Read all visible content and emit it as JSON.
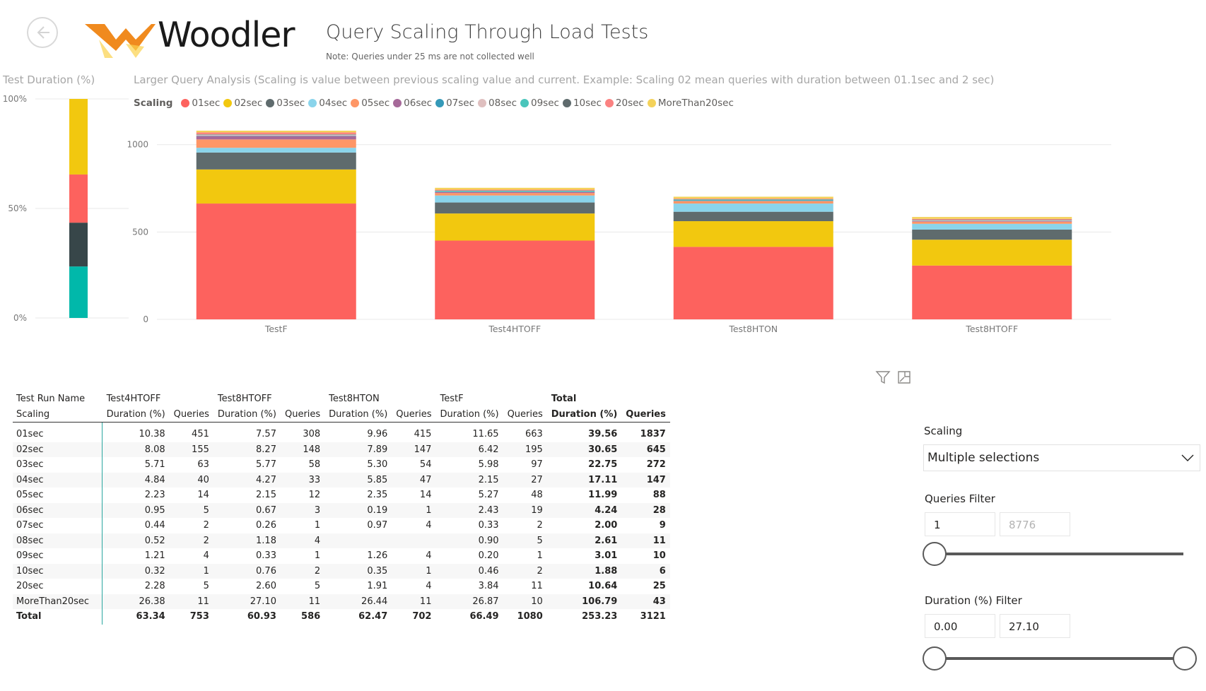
{
  "header": {
    "logo_text": "Woodler",
    "title": "Query Scaling Through Load Tests",
    "note": "Note: Queries under 25 ms are not collected well"
  },
  "left_chart_title": "Test Duration (%)",
  "main_chart_title": "Larger Query Analysis (Scaling is value between previous scaling value and current. Example: Scaling 02 mean queries with duration between 01.1sec and 2 sec)",
  "legend": {
    "title": "Scaling",
    "items": [
      {
        "label": "01sec",
        "color": "#fd625e"
      },
      {
        "label": "02sec",
        "color": "#f2c80f"
      },
      {
        "label": "03sec",
        "color": "#5f6b6d"
      },
      {
        "label": "04sec",
        "color": "#8ad4eb"
      },
      {
        "label": "05sec",
        "color": "#fe9666"
      },
      {
        "label": "06sec",
        "color": "#a66999"
      },
      {
        "label": "07sec",
        "color": "#3599b8"
      },
      {
        "label": "08sec",
        "color": "#dfbfbf"
      },
      {
        "label": "09sec",
        "color": "#4ac5bb"
      },
      {
        "label": "10sec",
        "color": "#5f6b6d"
      },
      {
        "label": "20sec",
        "color": "#fb8281"
      },
      {
        "label": "MoreThan20sec",
        "color": "#f4d25a"
      }
    ]
  },
  "chart_data": [
    {
      "type": "bar",
      "stacked": true,
      "title": "Test Duration (%)",
      "ylim": [
        0,
        100
      ],
      "y_ticks": [
        "0%",
        "50%",
        "100%"
      ],
      "grid": true,
      "series": [
        {
          "values": [
            23.5
          ],
          "color": "#01b8aa"
        },
        {
          "values": [
            20.0
          ],
          "color": "#374649"
        },
        {
          "values": [
            22.0
          ],
          "color": "#fd625e"
        },
        {
          "values": [
            34.5
          ],
          "color": "#f2c80f"
        }
      ]
    },
    {
      "type": "bar",
      "stacked": true,
      "title": "Larger Query Analysis (Scaling is value between previous scaling value and current. Example: Scaling 02 mean queries with duration between 01.1sec and 2 sec)",
      "categories": [
        "TestF",
        "Test4HTOFF",
        "Test8HTON",
        "Test8HTOFF"
      ],
      "ylim": [
        0,
        1100
      ],
      "y_ticks": [
        0,
        500,
        1000
      ],
      "grid": true,
      "legend_position": "top-left",
      "series": [
        {
          "name": "01sec",
          "values": [
            663,
            451,
            415,
            308
          ],
          "color": "#fd625e"
        },
        {
          "name": "02sec",
          "values": [
            195,
            155,
            147,
            148
          ],
          "color": "#f2c80f"
        },
        {
          "name": "03sec",
          "values": [
            97,
            63,
            54,
            58
          ],
          "color": "#5f6b6d"
        },
        {
          "name": "04sec",
          "values": [
            27,
            40,
            47,
            33
          ],
          "color": "#8ad4eb"
        },
        {
          "name": "05sec",
          "values": [
            48,
            14,
            14,
            12
          ],
          "color": "#fe9666"
        },
        {
          "name": "06sec",
          "values": [
            19,
            5,
            1,
            3
          ],
          "color": "#a66999"
        },
        {
          "name": "07sec",
          "values": [
            2,
            2,
            4,
            1
          ],
          "color": "#3599b8"
        },
        {
          "name": "08sec",
          "values": [
            5,
            2,
            0,
            4
          ],
          "color": "#dfbfbf"
        },
        {
          "name": "09sec",
          "values": [
            1,
            4,
            4,
            1
          ],
          "color": "#4ac5bb"
        },
        {
          "name": "10sec",
          "values": [
            2,
            1,
            1,
            2
          ],
          "color": "#5f6b6d"
        },
        {
          "name": "20sec",
          "values": [
            11,
            5,
            4,
            5
          ],
          "color": "#fb8281"
        },
        {
          "name": "MoreThan20sec",
          "values": [
            10,
            11,
            11,
            11
          ],
          "color": "#f4d25a"
        }
      ]
    }
  ],
  "matrix": {
    "row_header_1": "Test Run Name",
    "row_header_2": "Scaling",
    "groups": [
      "Test4HTOFF",
      "Test8HTOFF",
      "Test8HTON",
      "TestF",
      "Total"
    ],
    "sub_headers": [
      "Duration (%)",
      "Queries"
    ],
    "rows": [
      {
        "label": "01sec",
        "cells": [
          "10.38",
          "451",
          "7.57",
          "308",
          "9.96",
          "415",
          "11.65",
          "663",
          "39.56",
          "1837"
        ]
      },
      {
        "label": "02sec",
        "cells": [
          "8.08",
          "155",
          "8.27",
          "148",
          "7.89",
          "147",
          "6.42",
          "195",
          "30.65",
          "645"
        ]
      },
      {
        "label": "03sec",
        "cells": [
          "5.71",
          "63",
          "5.77",
          "58",
          "5.30",
          "54",
          "5.98",
          "97",
          "22.75",
          "272"
        ]
      },
      {
        "label": "04sec",
        "cells": [
          "4.84",
          "40",
          "4.27",
          "33",
          "5.85",
          "47",
          "2.15",
          "27",
          "17.11",
          "147"
        ]
      },
      {
        "label": "05sec",
        "cells": [
          "2.23",
          "14",
          "2.15",
          "12",
          "2.35",
          "14",
          "5.27",
          "48",
          "11.99",
          "88"
        ]
      },
      {
        "label": "06sec",
        "cells": [
          "0.95",
          "5",
          "0.67",
          "3",
          "0.19",
          "1",
          "2.43",
          "19",
          "4.24",
          "28"
        ]
      },
      {
        "label": "07sec",
        "cells": [
          "0.44",
          "2",
          "0.26",
          "1",
          "0.97",
          "4",
          "0.33",
          "2",
          "2.00",
          "9"
        ]
      },
      {
        "label": "08sec",
        "cells": [
          "0.52",
          "2",
          "1.18",
          "4",
          "",
          "",
          "0.90",
          "5",
          "2.61",
          "11"
        ]
      },
      {
        "label": "09sec",
        "cells": [
          "1.21",
          "4",
          "0.33",
          "1",
          "1.26",
          "4",
          "0.20",
          "1",
          "3.01",
          "10"
        ]
      },
      {
        "label": "10sec",
        "cells": [
          "0.32",
          "1",
          "0.76",
          "2",
          "0.35",
          "1",
          "0.46",
          "2",
          "1.88",
          "6"
        ]
      },
      {
        "label": "20sec",
        "cells": [
          "2.28",
          "5",
          "2.60",
          "5",
          "1.91",
          "4",
          "3.84",
          "11",
          "10.64",
          "25"
        ]
      },
      {
        "label": "MoreThan20sec",
        "cells": [
          "26.38",
          "11",
          "27.10",
          "11",
          "26.44",
          "11",
          "26.87",
          "10",
          "106.79",
          "43"
        ]
      }
    ],
    "total": {
      "label": "Total",
      "cells": [
        "63.34",
        "753",
        "60.93",
        "586",
        "62.47",
        "702",
        "66.49",
        "1080",
        "253.23",
        "3121"
      ]
    }
  },
  "slicers": {
    "scaling": {
      "label": "Scaling",
      "value": "Multiple selections"
    },
    "queries": {
      "label": "Queries Filter",
      "min": "1",
      "max_placeholder": "8776",
      "min_fraction": 0.0
    },
    "duration": {
      "label": "Duration (%) Filter",
      "min": "0.00",
      "max": "27.10",
      "min_fraction": 0.0,
      "max_fraction": 1.0
    }
  }
}
